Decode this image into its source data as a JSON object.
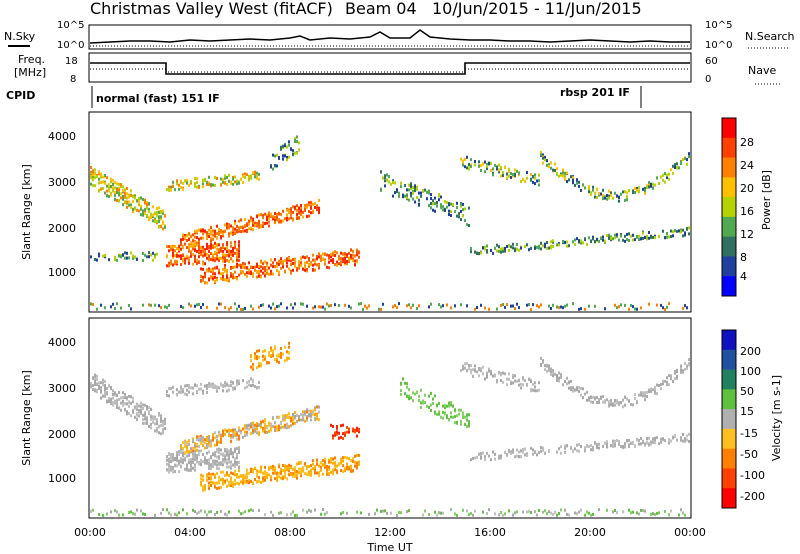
{
  "header": {
    "station": "Christmas Valley West (fitACF)",
    "beam": "Beam 04",
    "date_range": "10/Jun/2015 - 11/Jun/2015"
  },
  "top_panel": {
    "left_label": "N.Sky",
    "right_label": "N.Search",
    "left_ticks": [
      "10^5",
      "10^0"
    ],
    "right_ticks": [
      "10^5",
      "10^0"
    ]
  },
  "freq_panel": {
    "left_label_1": "Freq.",
    "left_label_2": "[MHz]",
    "left_ticks": [
      "18",
      "8"
    ],
    "right_label": "Nave",
    "right_ticks": [
      "60",
      "0"
    ]
  },
  "cpid": {
    "label": "CPID",
    "mode_1": "normal (fast) 151 IF",
    "mode_2": "rbsp 201 IF"
  },
  "chart_data": [
    {
      "type": "heatmap",
      "name": "power",
      "ylabel": "Slant Range [km]",
      "yticks": [
        "4000",
        "3000",
        "2000",
        "1000"
      ],
      "xticks": [
        "00:00",
        "04:00",
        "08:00",
        "12:00",
        "16:00",
        "20:00",
        "00:00"
      ],
      "xlabel": "Time UT",
      "colorbar": {
        "label": "Power [dB]",
        "ticks": [
          "28",
          "24",
          "20",
          "16",
          "12",
          "8",
          "4"
        ],
        "colors": [
          "#ff0000",
          "#ff4000",
          "#ff8000",
          "#ffc000",
          "#b4d200",
          "#50a850",
          "#307060",
          "#2040a0",
          "#0000ff"
        ]
      }
    },
    {
      "type": "heatmap",
      "name": "velocity",
      "ylabel": "Slant Range [km]",
      "yticks": [
        "4000",
        "3000",
        "2000",
        "1000"
      ],
      "xticks": [
        "00:00",
        "04:00",
        "08:00",
        "12:00",
        "16:00",
        "20:00",
        "00:00"
      ],
      "xlabel": "Time UT",
      "colorbar": {
        "label": "Velocity [m s-1]",
        "ticks": [
          "200",
          "100",
          "50",
          "15",
          "-15",
          "-50",
          "-100",
          "-200"
        ],
        "colors": [
          "#1010c0",
          "#2050a0",
          "#208060",
          "#60c040",
          "#b0b0b0",
          "#ffc020",
          "#ff8000",
          "#ff4000",
          "#ff0000"
        ]
      }
    }
  ]
}
